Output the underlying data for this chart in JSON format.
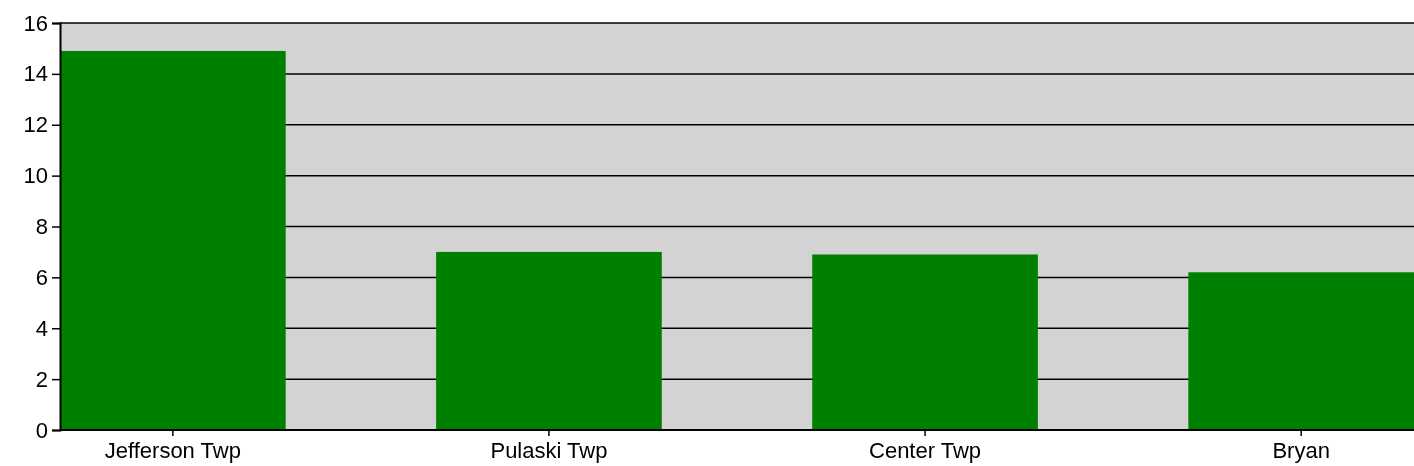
{
  "chart_data": {
    "type": "bar",
    "categories": [
      "Jefferson Twp",
      "Pulaski Twp",
      "Center Twp",
      "Bryan"
    ],
    "values": [
      14.9,
      7.0,
      6.9,
      6.2
    ],
    "color": "#008000",
    "ylim": [
      0,
      16
    ],
    "yticks": [
      0,
      2,
      4,
      6,
      8,
      10,
      12,
      14,
      16
    ],
    "grid": "y"
  }
}
